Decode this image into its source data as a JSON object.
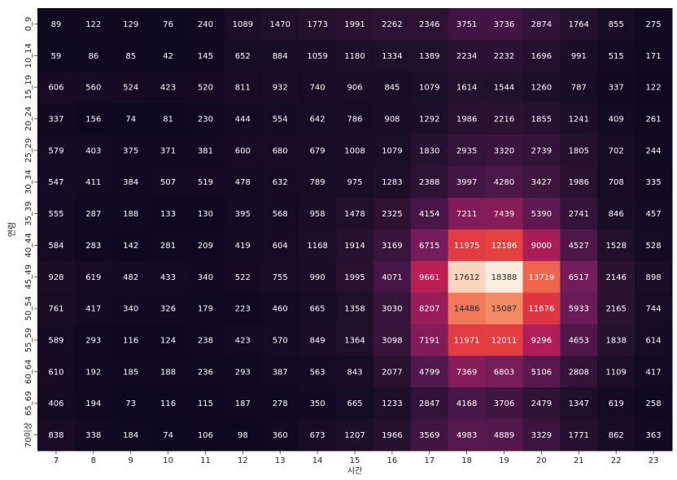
{
  "chart_data": {
    "type": "heatmap",
    "title": "",
    "xlabel": "시간",
    "ylabel": "연령",
    "x": [
      "7",
      "8",
      "9",
      "10",
      "11",
      "12",
      "13",
      "14",
      "15",
      "16",
      "17",
      "18",
      "19",
      "20",
      "21",
      "22",
      "23"
    ],
    "y": [
      "0_9",
      "10_14",
      "15_19",
      "20_24",
      "25_29",
      "30_34",
      "35_39",
      "40_44",
      "45_49",
      "50_54",
      "55_59",
      "60_64",
      "65_69",
      "70이상"
    ],
    "values": [
      [
        89,
        122,
        129,
        76,
        240,
        1089,
        1470,
        1773,
        1991,
        2262,
        2346,
        3751,
        3736,
        2874,
        1764,
        855,
        275
      ],
      [
        59,
        86,
        85,
        42,
        145,
        652,
        884,
        1059,
        1180,
        1334,
        1389,
        2234,
        2232,
        1696,
        991,
        515,
        171
      ],
      [
        606,
        560,
        524,
        423,
        520,
        811,
        932,
        740,
        906,
        845,
        1079,
        1614,
        1544,
        1260,
        787,
        337,
        122
      ],
      [
        337,
        156,
        74,
        81,
        230,
        444,
        554,
        642,
        786,
        908,
        1292,
        1986,
        2216,
        1855,
        1241,
        409,
        261
      ],
      [
        579,
        403,
        375,
        371,
        381,
        600,
        680,
        679,
        1008,
        1079,
        1830,
        2935,
        3320,
        2739,
        1805,
        702,
        244
      ],
      [
        547,
        411,
        384,
        507,
        519,
        478,
        632,
        789,
        975,
        1283,
        2388,
        3997,
        4280,
        3427,
        1986,
        708,
        335
      ],
      [
        555,
        287,
        188,
        133,
        130,
        395,
        568,
        958,
        1478,
        2325,
        4154,
        7211,
        7439,
        5390,
        2741,
        846,
        457
      ],
      [
        584,
        283,
        142,
        281,
        209,
        419,
        604,
        1168,
        1914,
        3169,
        6715,
        11975,
        12186,
        9000,
        4527,
        1528,
        528
      ],
      [
        928,
        619,
        482,
        433,
        340,
        522,
        755,
        990,
        1995,
        4071,
        9661,
        17612,
        18388,
        13719,
        6517,
        2146,
        898
      ],
      [
        761,
        417,
        340,
        326,
        179,
        223,
        460,
        665,
        1358,
        3030,
        8207,
        14486,
        15087,
        11676,
        5933,
        2165,
        744
      ],
      [
        589,
        293,
        116,
        124,
        238,
        423,
        570,
        849,
        1364,
        3098,
        7191,
        11971,
        12011,
        9296,
        4653,
        1838,
        614
      ],
      [
        610,
        192,
        185,
        188,
        236,
        293,
        387,
        563,
        843,
        2077,
        4799,
        7369,
        6803,
        5106,
        2808,
        1109,
        417
      ],
      [
        406,
        194,
        73,
        116,
        115,
        187,
        278,
        350,
        665,
        1233,
        2847,
        4168,
        3706,
        2479,
        1347,
        619,
        258
      ],
      [
        838,
        338,
        184,
        74,
        106,
        98,
        360,
        673,
        1207,
        1966,
        3569,
        4983,
        4889,
        3329,
        1771,
        862,
        363
      ]
    ],
    "vmin": 42,
    "vmax": 18388,
    "colormap": "rocket",
    "grid": false,
    "legend": "none",
    "annotated": true
  }
}
